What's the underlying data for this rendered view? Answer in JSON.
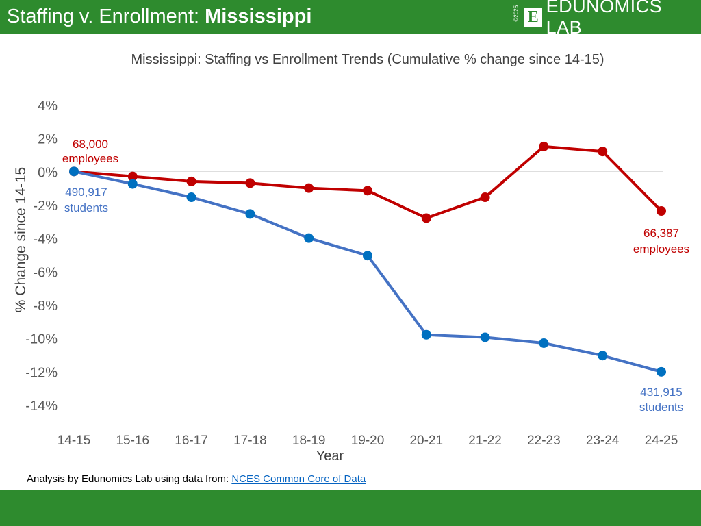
{
  "header": {
    "title_prefix": "Staffing v. Enrollment: ",
    "title_state": "Mississippi"
  },
  "logo": {
    "copyright": "©2025",
    "mark": "E",
    "text": "EDUNOMICS LAB"
  },
  "footer": {
    "prefix": "Analysis by Edunomics Lab using data from: ",
    "link": "NCES Common Core of Data"
  },
  "colors": {
    "brand_green": "#2e8b2e",
    "staff": "#c00000",
    "students_line": "#4472c4",
    "students_marker": "#0070c0"
  },
  "chart_data": {
    "type": "line",
    "title": "Mississippi: Staffing vs Enrollment Trends (Cumulative % change since 14-15)",
    "xlabel": "Year",
    "ylabel": "% Change since 14-15",
    "ylim": [
      -14,
      4
    ],
    "yticks": [
      "4%",
      "2%",
      "0%",
      "-2%",
      "-4%",
      "-6%",
      "-8%",
      "-10%",
      "-12%",
      "-14%"
    ],
    "ytick_values": [
      4,
      2,
      0,
      -2,
      -4,
      -6,
      -8,
      -10,
      -12,
      -14
    ],
    "categories": [
      "14-15",
      "15-16",
      "16-17",
      "17-18",
      "18-19",
      "19-20",
      "20-21",
      "21-22",
      "22-23",
      "23-24",
      "24-25"
    ],
    "series": [
      {
        "key": "staff",
        "values": [
          0,
          -0.3,
          -0.6,
          -0.7,
          -1.0,
          -1.15,
          -2.8,
          -1.55,
          1.5,
          1.2,
          -2.37
        ]
      },
      {
        "key": "students",
        "values": [
          0,
          -0.75,
          -1.55,
          -2.55,
          -4.0,
          -5.05,
          -9.8,
          -9.95,
          -10.3,
          -11.05,
          -12.02
        ]
      }
    ],
    "annotations": {
      "staff_start": [
        "68,000",
        "employees"
      ],
      "staff_end": [
        "66,387",
        "employees"
      ],
      "students_start": [
        "490,917",
        "students"
      ],
      "students_end": [
        "431,915",
        "students"
      ]
    },
    "grid": "zero-line only",
    "legend": "none"
  }
}
